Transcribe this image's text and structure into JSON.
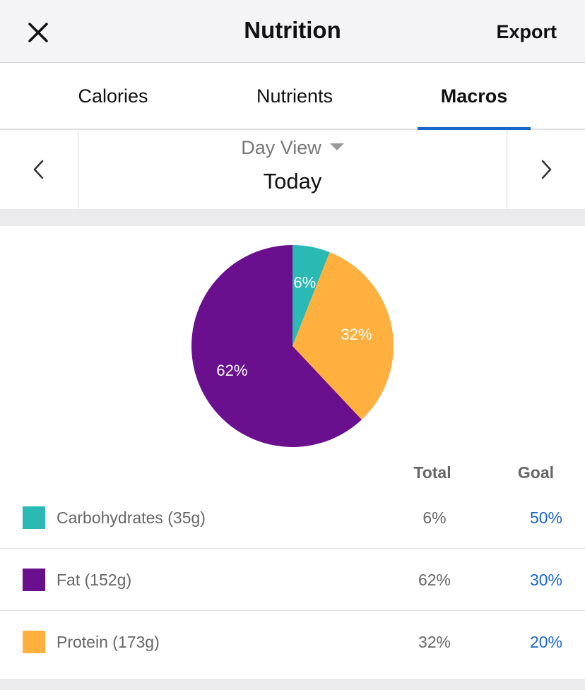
{
  "header": {
    "title": "Nutrition",
    "export_label": "Export",
    "close_icon": "close-icon"
  },
  "tabs": [
    {
      "label": "Calories",
      "active": false
    },
    {
      "label": "Nutrients",
      "active": false
    },
    {
      "label": "Macros",
      "active": true
    }
  ],
  "date_nav": {
    "view_label": "Day View",
    "date_label": "Today"
  },
  "table": {
    "total_header": "Total",
    "goal_header": "Goal"
  },
  "macros": [
    {
      "label": "Carbohydrates (35g)",
      "total": "6%",
      "goal": "50%",
      "color": "#2bbab3"
    },
    {
      "label": "Fat (152g)",
      "total": "62%",
      "goal": "30%",
      "color": "#6a0f8e"
    },
    {
      "label": "Protein (173g)",
      "total": "32%",
      "goal": "20%",
      "color": "#ffb03f"
    }
  ],
  "chart_data": {
    "type": "pie",
    "slices": [
      {
        "name": "Carbohydrates",
        "value": 6,
        "label": "6%",
        "color": "#2bbab3"
      },
      {
        "name": "Protein",
        "value": 32,
        "label": "32%",
        "color": "#ffb03f"
      },
      {
        "name": "Fat",
        "value": 62,
        "label": "62%",
        "color": "#6a0f8e"
      }
    ]
  },
  "colors": {
    "accent": "#1a66cc"
  }
}
